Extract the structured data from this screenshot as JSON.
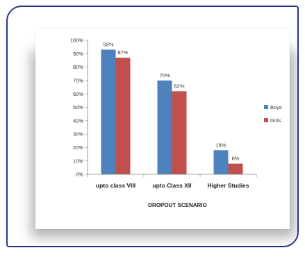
{
  "chart_data": {
    "type": "bar",
    "title": "",
    "xlabel": "DROPOUT SCENARIO",
    "ylabel": "",
    "ylim": [
      0,
      100
    ],
    "yticks": [
      "0%",
      "10%",
      "20%",
      "30%",
      "40%",
      "50%",
      "60%",
      "70%",
      "80%",
      "90%",
      "100%"
    ],
    "categories": [
      "upto class VIII",
      "upto Class XII",
      "Higher Studies"
    ],
    "series": [
      {
        "name": "Boys",
        "color": "#4f81bd",
        "values": [
          93,
          70,
          18
        ],
        "labels": [
          "93%",
          "70%",
          "18%"
        ]
      },
      {
        "name": "Girls",
        "color": "#c0504d",
        "values": [
          87,
          62,
          8
        ],
        "labels": [
          "87%",
          "62%",
          "8%"
        ]
      }
    ],
    "legend": "right",
    "grid": false
  }
}
